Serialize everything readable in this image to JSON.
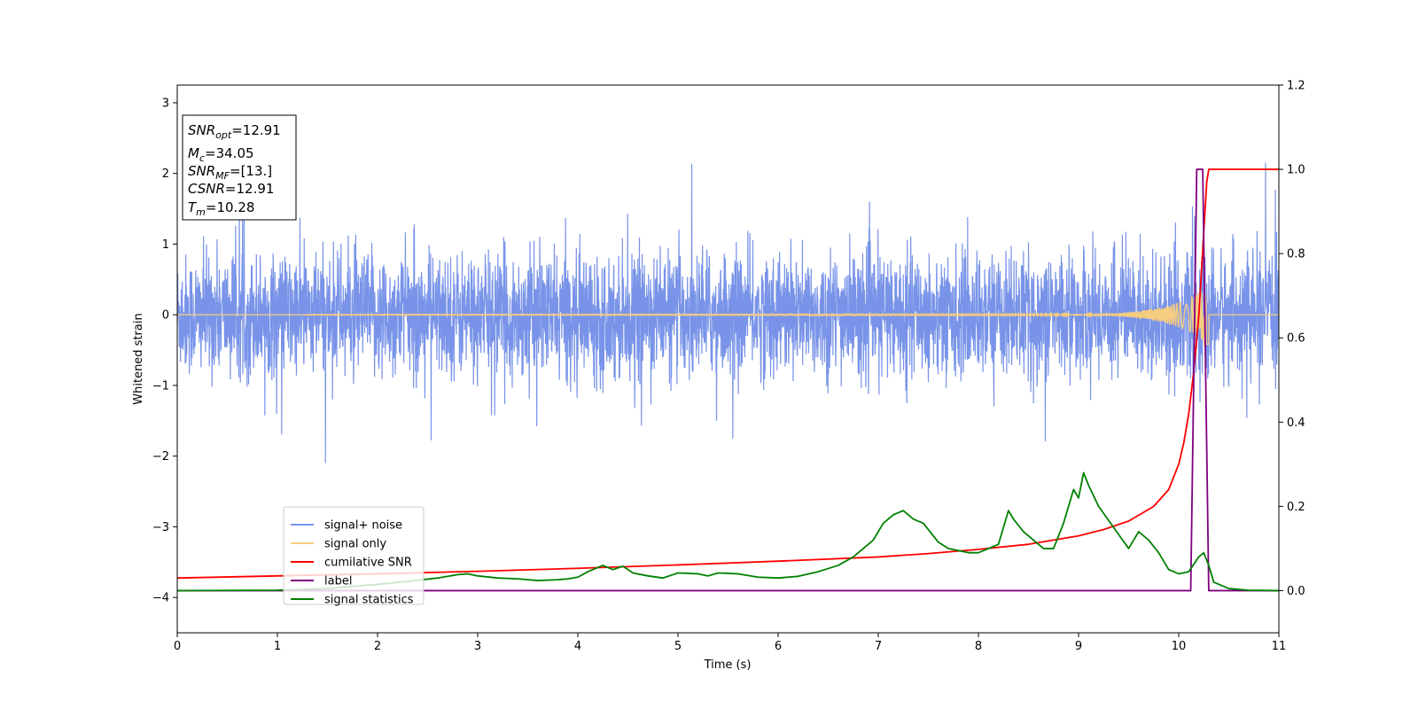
{
  "chart_data": {
    "type": "line",
    "xlabel": "Time (s)",
    "ylabel": "Whitened strain",
    "xlim": [
      0,
      11
    ],
    "ylim_left": [
      -4.5,
      3.25
    ],
    "ylim_right": [
      -0.1,
      1.2
    ],
    "x_ticks": [
      "0",
      "1",
      "2",
      "3",
      "4",
      "5",
      "6",
      "7",
      "8",
      "9",
      "10",
      "11"
    ],
    "y_left_ticks": [
      "3",
      "2",
      "1",
      "0",
      "−1",
      "−2",
      "−3",
      "−4"
    ],
    "y_left_tick_values": [
      3,
      2,
      1,
      0,
      -1,
      -2,
      -3,
      -4
    ],
    "y_right_ticks": [
      "1.2",
      "1.0",
      "0.8",
      "0.6",
      "0.4",
      "0.2",
      "0.0"
    ],
    "y_right_tick_values": [
      1.2,
      1.0,
      0.8,
      0.6,
      0.4,
      0.2,
      0.0
    ],
    "legend": {
      "placement": "lower-left",
      "entries": [
        {
          "name": "signal+ noise",
          "color": "#7893e8"
        },
        {
          "name": "signal only",
          "color": "#f5cc80"
        },
        {
          "name": "cumilative SNR",
          "color": "#ff0000"
        },
        {
          "name": "label",
          "color": "#800080"
        },
        {
          "name": "signal statistics",
          "color": "#008000"
        }
      ]
    },
    "info_box": {
      "snr_opt": {
        "base": "SNR",
        "sub": "opt",
        "value": "=12.91"
      },
      "mc": {
        "base": "M",
        "sub": "c",
        "value": "=34.05"
      },
      "snr_mf": {
        "base": "SNR",
        "sub": "MF",
        "value": "=[13.]"
      },
      "csnr": {
        "base": "CSNR",
        "value": "=12.91"
      },
      "tm": {
        "base": "T",
        "sub": "m",
        "value": "=10.28"
      }
    },
    "series": [
      {
        "name": "signal+ noise",
        "axis": "left",
        "color": "#7893e8",
        "description_values": {
          "x_range": [
            0,
            11
          ],
          "typical_amplitude": 0.75,
          "max": 2.15,
          "min": -2.2
        }
      },
      {
        "name": "signal only",
        "axis": "left",
        "color": "#f5cc80",
        "peak_time": 10.28,
        "peak_amplitude": 0.55
      },
      {
        "name": "cumilative SNR",
        "axis": "right",
        "color": "#ff0000",
        "x": [
          0,
          1,
          2,
          3,
          4,
          5,
          6,
          7,
          7.5,
          8,
          8.5,
          9,
          9.25,
          9.5,
          9.75,
          9.9,
          10.0,
          10.05,
          10.1,
          10.15,
          10.2,
          10.25,
          10.28,
          10.3,
          11
        ],
        "y": [
          0.03,
          0.035,
          0.04,
          0.046,
          0.053,
          0.061,
          0.07,
          0.08,
          0.088,
          0.098,
          0.11,
          0.13,
          0.145,
          0.165,
          0.2,
          0.24,
          0.3,
          0.35,
          0.42,
          0.52,
          0.65,
          0.85,
          0.97,
          1.0,
          1.0
        ]
      },
      {
        "name": "label",
        "axis": "right",
        "color": "#800080",
        "x": [
          0,
          10.12,
          10.18,
          10.24,
          10.3,
          11
        ],
        "y": [
          0,
          0,
          1.0,
          1.0,
          0,
          0
        ]
      },
      {
        "name": "signal statistics",
        "axis": "right",
        "color": "#008000",
        "x": [
          0,
          1,
          1.5,
          2,
          2.3,
          2.6,
          2.8,
          2.9,
          3.0,
          3.2,
          3.4,
          3.6,
          3.8,
          3.9,
          4.0,
          4.1,
          4.25,
          4.35,
          4.45,
          4.55,
          4.7,
          4.85,
          5.0,
          5.2,
          5.3,
          5.4,
          5.6,
          5.8,
          6.0,
          6.2,
          6.4,
          6.6,
          6.75,
          6.85,
          6.95,
          7.05,
          7.15,
          7.25,
          7.35,
          7.45,
          7.55,
          7.6,
          7.7,
          7.8,
          7.9,
          8.0,
          8.1,
          8.2,
          8.3,
          8.35,
          8.45,
          8.55,
          8.65,
          8.75,
          8.85,
          8.95,
          9.0,
          9.05,
          9.1,
          9.2,
          9.35,
          9.5,
          9.6,
          9.7,
          9.8,
          9.9,
          10.0,
          10.1,
          10.2,
          10.25,
          10.3,
          10.35,
          10.5,
          10.7,
          11
        ],
        "y": [
          0.0,
          0.001,
          0.005,
          0.015,
          0.022,
          0.03,
          0.038,
          0.04,
          0.035,
          0.03,
          0.028,
          0.024,
          0.026,
          0.028,
          0.032,
          0.045,
          0.06,
          0.05,
          0.058,
          0.042,
          0.035,
          0.03,
          0.042,
          0.04,
          0.035,
          0.042,
          0.04,
          0.032,
          0.03,
          0.034,
          0.045,
          0.06,
          0.08,
          0.1,
          0.12,
          0.16,
          0.18,
          0.19,
          0.17,
          0.16,
          0.13,
          0.115,
          0.1,
          0.095,
          0.09,
          0.09,
          0.1,
          0.11,
          0.19,
          0.17,
          0.14,
          0.12,
          0.1,
          0.1,
          0.16,
          0.24,
          0.22,
          0.28,
          0.25,
          0.2,
          0.15,
          0.1,
          0.14,
          0.12,
          0.09,
          0.05,
          0.04,
          0.045,
          0.08,
          0.09,
          0.06,
          0.02,
          0.005,
          0.001,
          0.0
        ]
      }
    ]
  }
}
